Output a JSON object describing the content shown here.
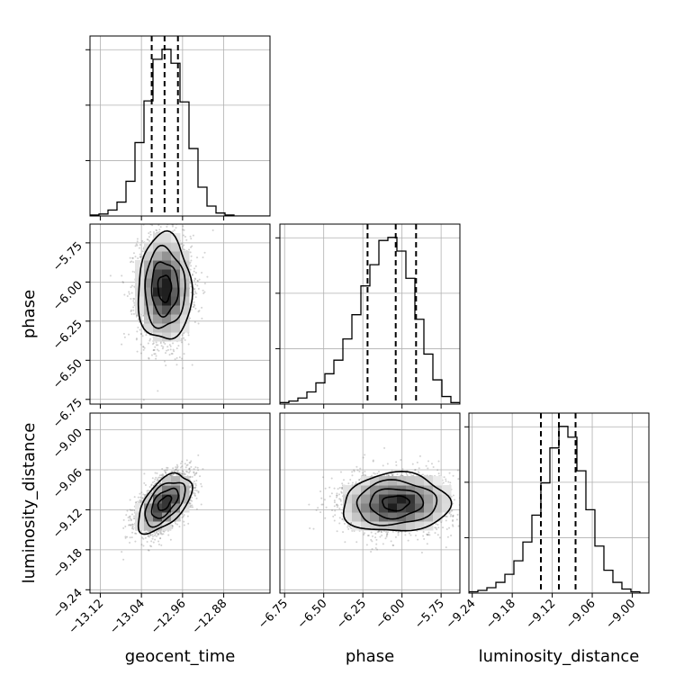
{
  "chart_data": {
    "type": "corner",
    "parameters": [
      "geocent_time",
      "phase",
      "luminosity_distance"
    ],
    "ranges": {
      "geocent_time": [
        -13.14,
        -12.79
      ],
      "phase": [
        -6.78,
        -5.63
      ],
      "luminosity_distance": [
        -9.245,
        -8.975
      ]
    },
    "ticks": {
      "geocent_time": [
        -13.12,
        -13.04,
        -12.96,
        -12.88
      ],
      "phase": [
        -6.75,
        -6.5,
        -6.25,
        -6.0,
        -5.75
      ],
      "luminosity_distance": [
        -9.24,
        -9.18,
        -9.12,
        -9.06,
        -9.0
      ]
    },
    "tick_labels": {
      "geocent_time": [
        "−13.12",
        "−13.04",
        "−12.96",
        "−12.88"
      ],
      "phase": [
        "−6.75",
        "−6.50",
        "−6.25",
        "−6.00",
        "−5.75"
      ],
      "luminosity_distance": [
        "−9.24",
        "−9.18",
        "−9.12",
        "−9.06",
        "−9.00"
      ]
    },
    "quantile_lines": {
      "geocent_time": [
        -13.02,
        -12.995,
        -12.969
      ],
      "phase": [
        -6.22,
        -6.04,
        -5.91
      ],
      "luminosity_distance": [
        -9.137,
        -9.11,
        -9.085
      ]
    },
    "histograms": {
      "geocent_time": {
        "edges": [
          -13.14,
          -13.1225,
          -13.105,
          -13.0875,
          -13.07,
          -13.0525,
          -13.035,
          -13.0175,
          -13.0,
          -12.9825,
          -12.965,
          -12.9475,
          -12.93,
          -12.9125,
          -12.895,
          -12.8775,
          -12.86,
          -12.8425,
          -12.825,
          -12.8075,
          -12.79
        ],
        "counts": [
          1,
          2,
          6,
          14,
          35,
          74,
          116,
          158,
          168,
          154,
          115,
          68,
          29,
          10,
          3,
          1,
          0,
          0,
          0,
          0
        ]
      },
      "phase": {
        "edges": [
          -6.78,
          -6.7225,
          -6.665,
          -6.6075,
          -6.55,
          -6.4925,
          -6.435,
          -6.3775,
          -6.32,
          -6.2625,
          -6.205,
          -6.1475,
          -6.09,
          -6.0325,
          -5.975,
          -5.9175,
          -5.86,
          -5.8025,
          -5.745,
          -5.6875,
          -5.63
        ],
        "counts": [
          1,
          2,
          4,
          8,
          14,
          20,
          29,
          43,
          59,
          78,
          92,
          108,
          110,
          101,
          83,
          56,
          33,
          16,
          5,
          1
        ]
      },
      "luminosity_distance": {
        "edges": [
          -9.245,
          -9.2315,
          -9.218,
          -9.2045,
          -9.191,
          -9.1775,
          -9.164,
          -9.1505,
          -9.137,
          -9.1235,
          -9.11,
          -9.0965,
          -9.083,
          -9.0695,
          -9.056,
          -9.0425,
          -9.029,
          -9.0155,
          -9.002,
          -8.9885,
          -8.975
        ],
        "counts": [
          1,
          2,
          4,
          8,
          14,
          24,
          38,
          58,
          82,
          108,
          124,
          116,
          91,
          62,
          35,
          17,
          8,
          3,
          1,
          0
        ]
      }
    },
    "two_d": {
      "phase_vs_geocent_time": {
        "x": "geocent_time",
        "y": "phase",
        "center": [
          -12.995,
          -6.04
        ],
        "sigma": [
          0.026,
          0.17
        ],
        "rho": 0.0
      },
      "luminosity_distance_vs_geocent_time": {
        "x": "geocent_time",
        "y": "luminosity_distance",
        "center": [
          -12.995,
          -9.11
        ],
        "sigma": [
          0.026,
          0.022
        ],
        "rho": 0.55
      },
      "luminosity_distance_vs_phase": {
        "x": "phase",
        "y": "luminosity_distance",
        "center": [
          -6.04,
          -9.11
        ],
        "sigma": [
          0.17,
          0.022
        ],
        "rho": 0.05
      }
    },
    "grid": true,
    "histogram_color": "#000000",
    "scatter_color": "#7f7f7f",
    "contour_color": "#000000"
  }
}
